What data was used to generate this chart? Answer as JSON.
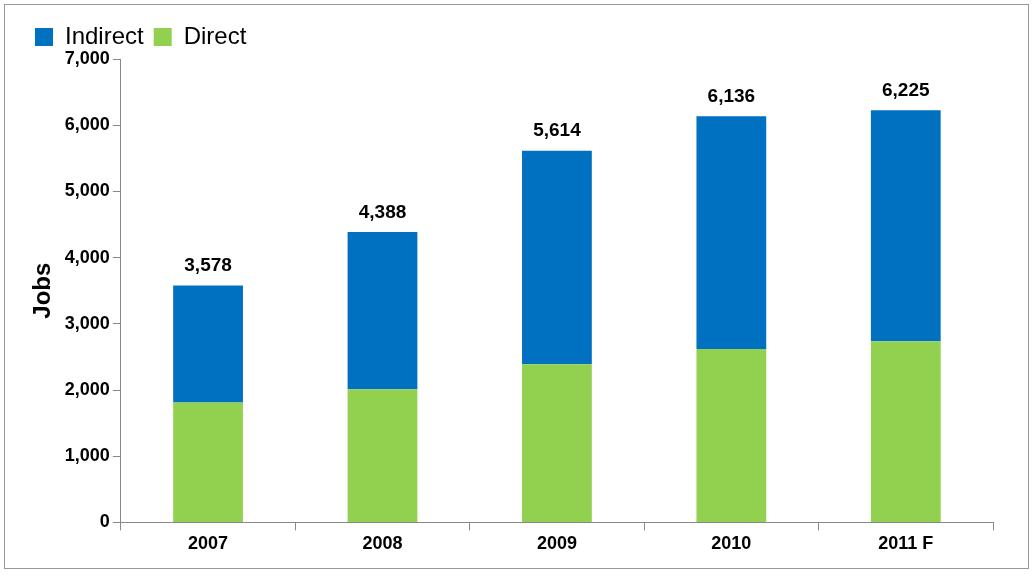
{
  "chart_data": {
    "type": "bar",
    "stacked": true,
    "ylabel": "Jobs",
    "categories": [
      "2007",
      "2008",
      "2009",
      "2010",
      "2011 F"
    ],
    "series": [
      {
        "name": "Direct",
        "color": "#92d050",
        "values": [
          1810,
          2010,
          2390,
          2620,
          2735
        ]
      },
      {
        "name": "Indirect",
        "color": "#0070c0",
        "values": [
          1768,
          2378,
          3224,
          3516,
          3490
        ]
      }
    ],
    "totals": [
      "3,578",
      "4,388",
      "5,614",
      "6,136",
      "6,225"
    ],
    "ylim": [
      0,
      7000
    ],
    "yticks": [
      0,
      {
        "value": 1000,
        "label": "1,000"
      },
      {
        "value": 2000,
        "label": "2,000"
      },
      {
        "value": 3000,
        "label": "3,000"
      },
      {
        "value": 4000,
        "label": "4,000"
      },
      {
        "value": 5000,
        "label": "5,000"
      },
      {
        "value": 6000,
        "label": "6,000"
      },
      {
        "value": 7000,
        "label": "7,000"
      }
    ],
    "grid": false,
    "legend": "top left"
  }
}
